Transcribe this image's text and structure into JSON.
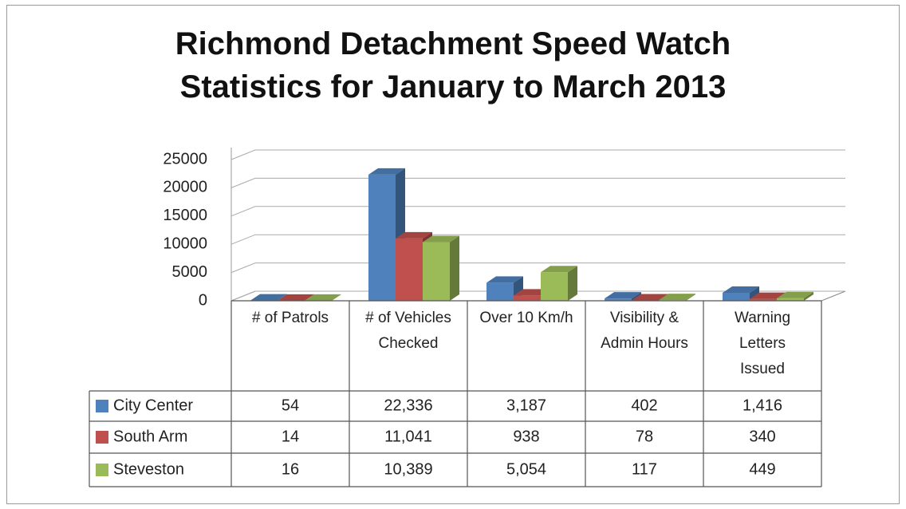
{
  "chart_data": {
    "type": "bar",
    "title": "Richmond Detachment Speed Watch Statistics for January to March 2013",
    "categories": [
      "# of Patrols",
      "# of Vehicles Checked",
      "Over 10 Km/h",
      "Visibility & Admin Hours",
      "Warning Letters Issued"
    ],
    "series": [
      {
        "name": "City Center",
        "color": "#4f81bd",
        "values": [
          54,
          22336,
          3187,
          402,
          1416
        ],
        "value_labels": [
          "54",
          "22,336",
          "3,187",
          "402",
          "1,416"
        ]
      },
      {
        "name": "South Arm",
        "color": "#c0504d",
        "values": [
          14,
          11041,
          938,
          78,
          340
        ],
        "value_labels": [
          "14",
          "11,041",
          "938",
          "78",
          "340"
        ]
      },
      {
        "name": "Steveston",
        "color": "#9bbb59",
        "values": [
          16,
          10389,
          5054,
          117,
          449
        ],
        "value_labels": [
          "16",
          "10,389",
          "5,054",
          "117",
          "449"
        ]
      }
    ],
    "ylim": [
      0,
      25000
    ],
    "yticks": [
      0,
      5000,
      10000,
      15000,
      20000,
      25000
    ],
    "grid": true
  }
}
